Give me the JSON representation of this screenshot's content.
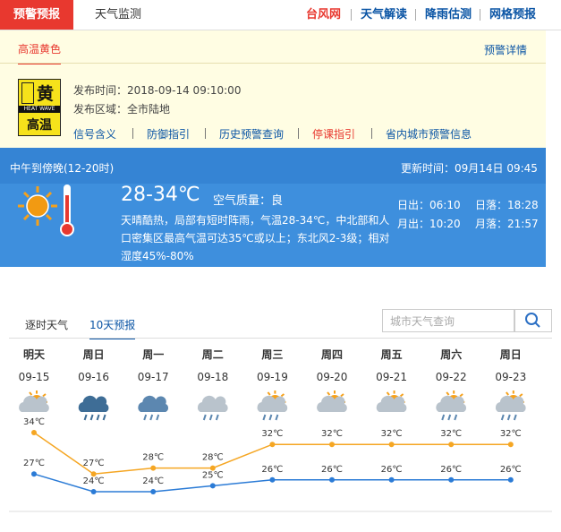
{
  "header": {
    "tabs": [
      "预警预报",
      "天气监测"
    ],
    "links": [
      "台风网",
      "天气解读",
      "降雨估测",
      "网格预报"
    ]
  },
  "warning": {
    "tab": "高温黄色",
    "detail": "预警详情",
    "icon": {
      "level": "黄",
      "en": "HEAT WAVE",
      "kind": "高温"
    },
    "time": "发布时间：2018-09-14 09:10:00",
    "area": "发布区域：全市陆地",
    "links": [
      "信号含义",
      "防御指引",
      "历史预警查询",
      "停课指引",
      "省内城市预警信息"
    ]
  },
  "today": {
    "period": "中午到傍晚(12-20时)",
    "updated": "更新时间：09月14日 09:45",
    "temp": "28-34℃",
    "air": "空气质量：良",
    "desc": "天晴酷热，局部有短时阵雨，气温28-34℃，中北部和人口密集区最高气温可达35℃或以上；东北风2-3级；相对湿度45%-80%",
    "sunrise": "日出：06:10",
    "sunset": "日落：18:28",
    "moonrise": "月出：10:20",
    "moonset": "月落：21:57"
  },
  "forecast": {
    "tabs": [
      "逐时天气",
      "10天预报"
    ],
    "search": "城市天气查询"
  },
  "chart_data": {
    "type": "line",
    "days": [
      "明天",
      "周日",
      "周一",
      "周二",
      "周三",
      "周四",
      "周五",
      "周六",
      "周日"
    ],
    "categories": [
      "09-15",
      "09-16",
      "09-17",
      "09-18",
      "09-19",
      "09-20",
      "09-21",
      "09-22",
      "09-23"
    ],
    "series": [
      {
        "color": "#f5a623",
        "values": [
          34,
          27,
          28,
          28,
          32,
          32,
          32,
          32,
          32
        ],
        "value_labels": [
          "34℃",
          "27℃",
          "28℃",
          "28℃",
          "32℃",
          "32℃",
          "32℃",
          "32℃",
          "32℃"
        ]
      },
      {
        "color": "#2b7bd6",
        "values": [
          27,
          24,
          24,
          25,
          26,
          26,
          26,
          26,
          26
        ],
        "value_labels": [
          "27℃",
          "24℃",
          "24℃",
          "25℃",
          "26℃",
          "26℃",
          "26℃",
          "26℃",
          "26℃"
        ]
      }
    ]
  }
}
